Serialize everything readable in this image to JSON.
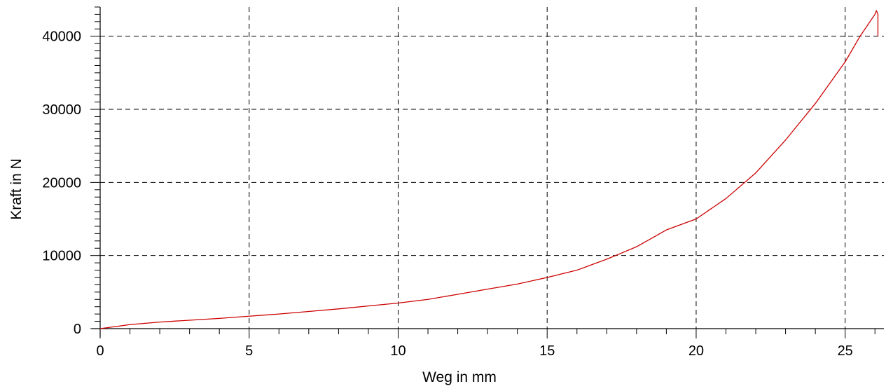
{
  "colors": {
    "series": "#cc0000",
    "axis": "#000000",
    "grid": "#000000",
    "background": "#ffffff"
  },
  "chart_data": {
    "type": "line",
    "title": "",
    "xlabel": "Weg in mm",
    "ylabel": "Kraft in N",
    "xlim": [
      0,
      26.3
    ],
    "ylim": [
      0,
      44000
    ],
    "x_ticks": [
      0,
      5,
      10,
      15,
      20,
      25
    ],
    "x_tick_labels": [
      "0",
      "5",
      "10",
      "15",
      "20",
      "25"
    ],
    "x_minor_step": 1,
    "y_ticks": [
      0,
      10000,
      20000,
      30000,
      40000
    ],
    "y_tick_labels": [
      "0",
      "10000",
      "20000",
      "30000",
      "40000"
    ],
    "y_minor_step": 1000,
    "grid": true,
    "grid_style": "dashed",
    "legend": "none",
    "series": [
      {
        "color": "#cc0000",
        "x": [
          0,
          1,
          2,
          3,
          4,
          5,
          6,
          7,
          8,
          9,
          10,
          11,
          12,
          13,
          14,
          15,
          16,
          17,
          18,
          19,
          20,
          21,
          22,
          23,
          24,
          25,
          25.5,
          26,
          26.05,
          26.1,
          26.1
        ],
        "y": [
          0,
          550,
          900,
          1150,
          1400,
          1700,
          2000,
          2350,
          2700,
          3100,
          3500,
          4000,
          4700,
          5400,
          6100,
          7000,
          8000,
          9500,
          11200,
          13500,
          15000,
          17800,
          21300,
          25800,
          30800,
          36500,
          40000,
          43000,
          43500,
          43000,
          40000
        ]
      }
    ]
  }
}
